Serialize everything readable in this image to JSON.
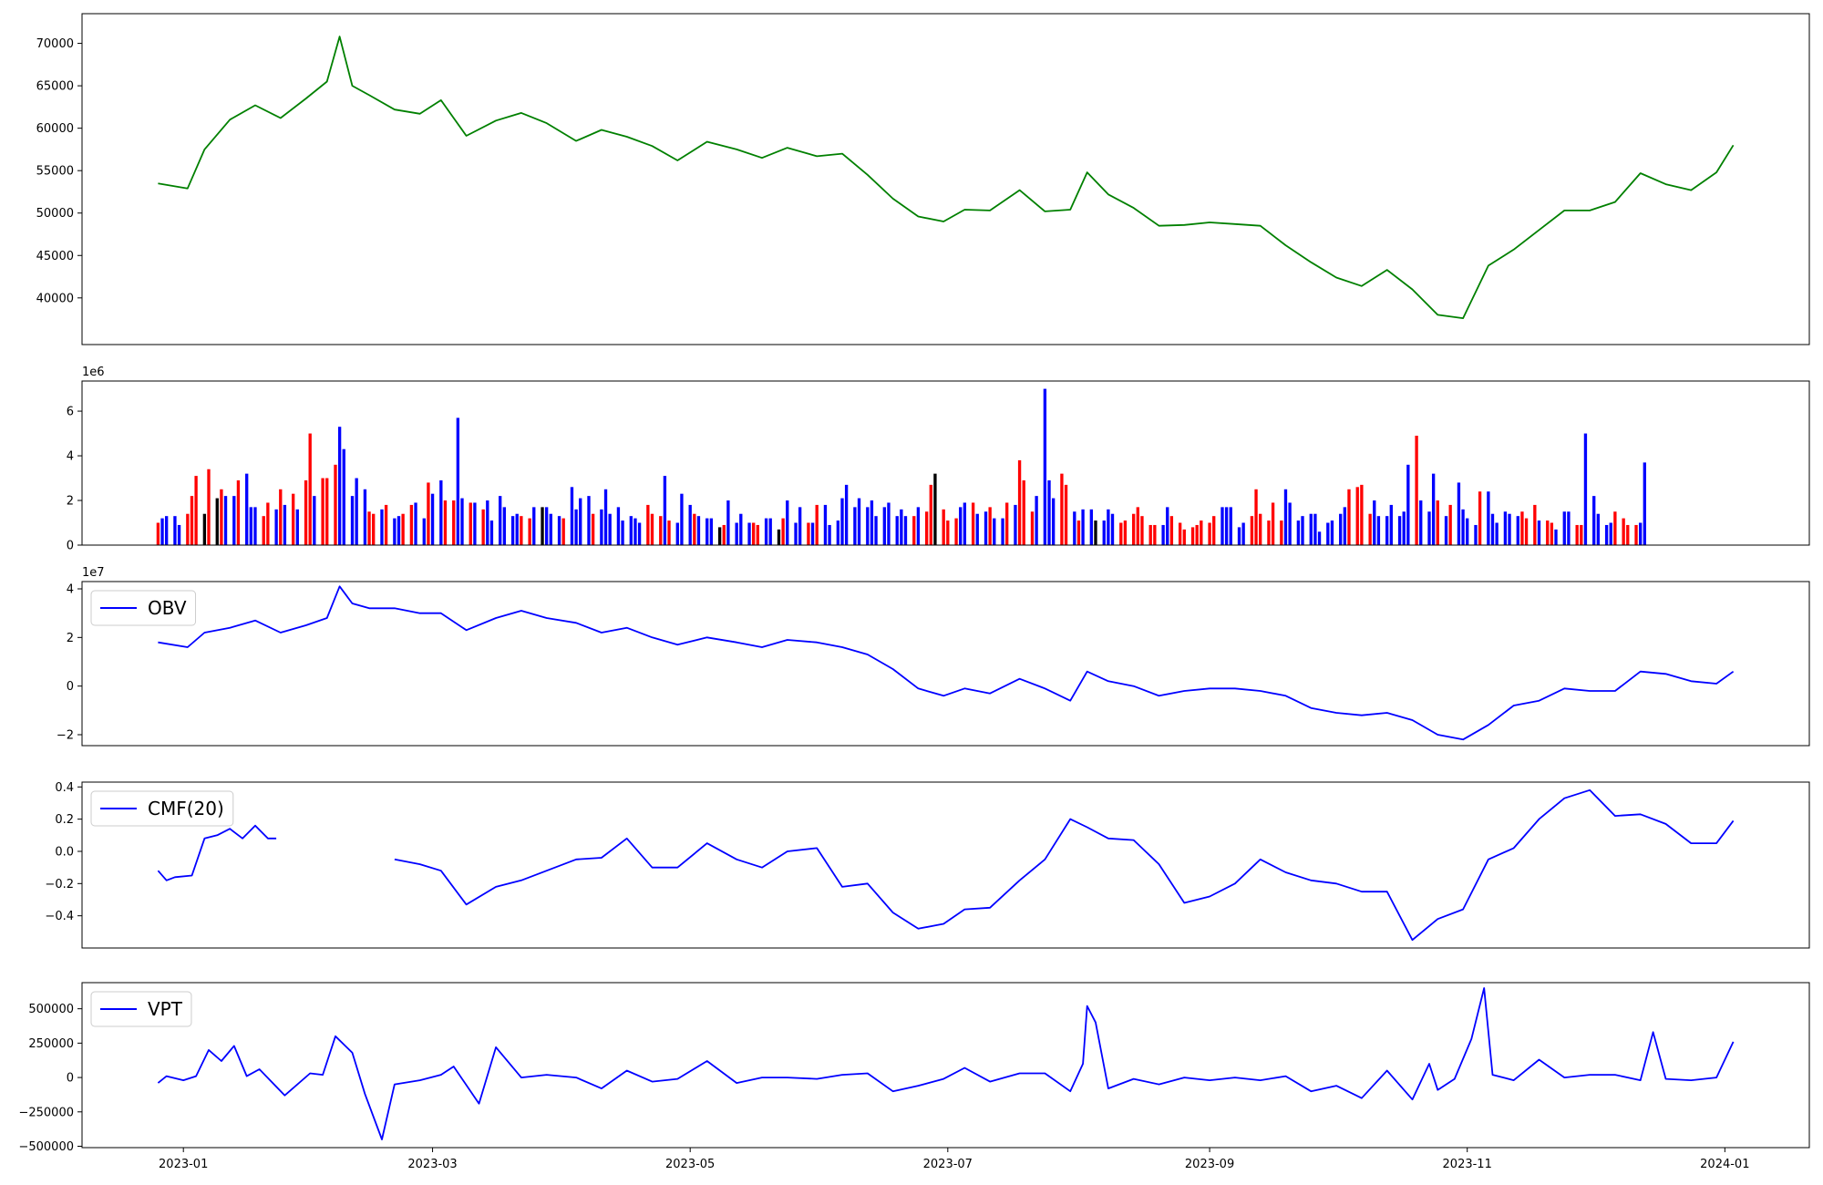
{
  "chart_data": [
    {
      "type": "line",
      "title": "",
      "xlabel": "",
      "ylabel": "",
      "color": "#008000",
      "ylim": [
        34500,
        73500
      ],
      "yticks": [
        40000,
        45000,
        50000,
        55000,
        60000,
        65000,
        70000
      ],
      "ytick_labels": [
        "40000",
        "45000",
        "50000",
        "55000",
        "60000",
        "65000",
        "70000"
      ],
      "x": [
        "2022-12-26",
        "2023-01-02",
        "2023-01-06",
        "2023-01-12",
        "2023-01-18",
        "2023-01-24",
        "2023-01-30",
        "2023-02-04",
        "2023-02-07",
        "2023-02-10",
        "2023-02-14",
        "2023-02-20",
        "2023-02-26",
        "2023-03-03",
        "2023-03-09",
        "2023-03-16",
        "2023-03-22",
        "2023-03-28",
        "2023-04-04",
        "2023-04-10",
        "2023-04-16",
        "2023-04-22",
        "2023-04-28",
        "2023-05-05",
        "2023-05-12",
        "2023-05-18",
        "2023-05-24",
        "2023-05-31",
        "2023-06-06",
        "2023-06-12",
        "2023-06-18",
        "2023-06-24",
        "2023-06-30",
        "2023-07-05",
        "2023-07-11",
        "2023-07-18",
        "2023-07-24",
        "2023-07-30",
        "2023-08-03",
        "2023-08-08",
        "2023-08-14",
        "2023-08-20",
        "2023-08-26",
        "2023-09-01",
        "2023-09-07",
        "2023-09-13",
        "2023-09-19",
        "2023-09-25",
        "2023-10-01",
        "2023-10-07",
        "2023-10-13",
        "2023-10-19",
        "2023-10-25",
        "2023-10-31",
        "2023-11-06",
        "2023-11-12",
        "2023-11-18",
        "2023-11-24",
        "2023-11-30",
        "2023-12-06",
        "2023-12-12",
        "2023-12-18",
        "2023-12-24",
        "2023-12-30",
        "2024-01-03"
      ],
      "values": [
        53500,
        52900,
        57500,
        61000,
        62700,
        61200,
        63500,
        65500,
        70800,
        65000,
        63900,
        62200,
        61700,
        63300,
        59100,
        60900,
        61800,
        60600,
        58500,
        59800,
        59000,
        57900,
        56200,
        58400,
        57500,
        56500,
        57700,
        56700,
        57000,
        54500,
        51700,
        49600,
        49000,
        50400,
        50300,
        52700,
        50200,
        50400,
        54800,
        52200,
        50600,
        48500,
        48600,
        48900,
        48700,
        48500,
        46200,
        44200,
        42400,
        41400,
        43300,
        41000,
        38000,
        37600,
        43800,
        45700,
        48000,
        50300,
        50300,
        51300,
        54700,
        53400,
        52700,
        54800,
        58000
      ]
    },
    {
      "type": "bar",
      "title": "",
      "xlabel": "",
      "ylabel": "",
      "offset_label": "1e6",
      "ylim": [
        0,
        7.35
      ],
      "yticks": [
        0,
        2,
        4,
        6
      ],
      "ytick_labels": [
        "0",
        "2",
        "4",
        "6"
      ],
      "colors": {
        "up": "#ff0000",
        "down": "#0000ff",
        "flat": "#000000"
      },
      "x_start": "2022-12-26",
      "values": [
        1.0,
        1.2,
        1.3,
        1.3,
        0.9,
        1.4,
        2.2,
        3.1,
        1.4,
        3.4,
        2.1,
        2.5,
        2.2,
        2.2,
        2.9,
        3.2,
        1.7,
        1.7,
        1.3,
        1.9,
        1.6,
        2.5,
        1.8,
        2.3,
        1.6,
        2.9,
        5.0,
        2.2,
        3.0,
        3.0,
        3.6,
        5.3,
        4.3,
        2.2,
        3.0,
        2.5,
        1.5,
        1.4,
        1.6,
        1.8,
        1.2,
        1.3,
        1.4,
        1.8,
        1.9,
        1.2,
        2.8,
        2.3,
        2.9,
        2.0,
        2.0,
        5.7,
        2.1,
        1.9,
        1.9,
        1.6,
        2.0,
        1.1,
        2.2,
        1.7,
        1.3,
        1.4,
        1.3,
        1.2,
        1.7,
        1.7,
        1.7,
        1.4,
        1.3,
        1.2,
        2.6,
        1.6,
        2.1,
        2.2,
        1.4,
        1.6,
        2.5,
        1.4,
        1.7,
        1.1,
        1.3,
        1.2,
        1.0,
        1.8,
        1.4,
        1.3,
        3.1,
        1.1,
        1.0,
        2.3,
        1.8,
        1.4,
        1.3,
        1.2,
        1.2,
        0.8,
        0.9,
        2.0,
        1.0,
        1.4,
        1.0,
        1.0,
        0.9,
        1.2,
        1.2,
        0.7,
        1.2,
        2.0,
        1.0,
        1.7,
        1.0,
        1.0,
        1.8,
        1.8,
        0.9,
        1.1,
        2.1,
        2.7,
        1.7,
        2.1,
        1.7,
        2.0,
        1.3,
        1.7,
        1.9,
        1.3,
        1.6,
        1.3,
        1.3,
        1.7,
        1.5,
        2.7,
        3.2,
        1.6,
        1.1,
        1.2,
        1.7,
        1.9,
        1.9,
        1.4,
        1.5,
        1.7,
        1.2,
        1.2,
        1.9,
        1.8,
        3.8,
        2.9,
        1.5,
        2.2,
        7.0,
        2.9,
        2.1,
        3.2,
        2.7,
        1.5,
        1.1,
        1.6,
        1.6,
        1.1,
        1.1,
        1.6,
        1.4,
        1.0,
        1.1,
        1.4,
        1.7,
        1.3,
        0.9,
        0.9,
        0.9,
        1.7,
        1.3,
        1.0,
        0.7,
        0.8,
        0.9,
        1.1,
        1.0,
        1.3,
        1.7,
        1.7,
        1.7,
        0.8,
        1.0,
        1.3,
        2.5,
        1.4,
        1.1,
        1.9,
        1.1,
        2.5,
        1.9,
        1.1,
        1.3,
        1.4,
        1.4,
        0.6,
        1.0,
        1.1,
        1.4,
        1.7,
        2.5,
        2.6,
        2.7,
        1.4,
        2.0,
        1.3,
        1.3,
        1.8,
        1.3,
        1.5,
        3.6,
        4.9,
        2.0,
        1.5,
        3.2,
        2.0,
        1.3,
        1.8,
        2.8,
        1.6,
        1.2,
        0.9,
        2.4,
        2.4,
        1.4,
        1.0,
        1.5,
        1.4,
        1.3,
        1.5,
        1.2,
        1.8,
        1.1,
        1.1,
        1.0,
        0.7,
        1.5,
        1.5,
        0.9,
        0.9,
        5.0,
        2.2,
        1.4,
        0.9,
        1.0,
        1.5,
        1.2,
        0.9,
        0.9,
        1.0,
        3.7
      ],
      "colors_seq": "rbbbbrrrkrkrbbrbbbrrbrbrbrrbrrrbbbbbrrbrbbrrbbrbbrrbbrbrbbbbbbrrbkbbbrbbbbrbbbbbbbbrrrbrbbbrbbbkrbbbbrrbbkrbbbrbrbbbbbbbbbbbbbbbrbrrkrrrbbrbbrbbrbrrrbbbbrrbrbbkbbbrrrrrrrbbrrrrrrrrbbbbbrrrrrrbbbbbbbbbbbrrrrbbbbbbbrbbbrbrbbbbrbbbbbbrrrbrrbbbrrbbbbbrrrrbbbbbbrrrbbbrrrrr"
    },
    {
      "type": "line",
      "title": "",
      "xlabel": "",
      "ylabel": "",
      "offset_label": "1e7",
      "legend": "OBV",
      "legend_position": "upper-left",
      "color": "#0000ff",
      "ylim": [
        -2.45,
        4.3
      ],
      "yticks": [
        -2,
        0,
        2,
        4
      ],
      "ytick_labels": [
        "−2",
        "0",
        "2",
        "4"
      ],
      "x": [
        "2022-12-26",
        "2023-01-02",
        "2023-01-06",
        "2023-01-12",
        "2023-01-18",
        "2023-01-24",
        "2023-01-30",
        "2023-02-04",
        "2023-02-07",
        "2023-02-10",
        "2023-02-14",
        "2023-02-20",
        "2023-02-26",
        "2023-03-03",
        "2023-03-09",
        "2023-03-16",
        "2023-03-22",
        "2023-03-28",
        "2023-04-04",
        "2023-04-10",
        "2023-04-16",
        "2023-04-22",
        "2023-04-28",
        "2023-05-05",
        "2023-05-12",
        "2023-05-18",
        "2023-05-24",
        "2023-05-31",
        "2023-06-06",
        "2023-06-12",
        "2023-06-18",
        "2023-06-24",
        "2023-06-30",
        "2023-07-05",
        "2023-07-11",
        "2023-07-18",
        "2023-07-24",
        "2023-07-30",
        "2023-08-03",
        "2023-08-08",
        "2023-08-14",
        "2023-08-20",
        "2023-08-26",
        "2023-09-01",
        "2023-09-07",
        "2023-09-13",
        "2023-09-19",
        "2023-09-25",
        "2023-10-01",
        "2023-10-07",
        "2023-10-13",
        "2023-10-19",
        "2023-10-25",
        "2023-10-31",
        "2023-11-06",
        "2023-11-12",
        "2023-11-18",
        "2023-11-24",
        "2023-11-30",
        "2023-12-06",
        "2023-12-12",
        "2023-12-18",
        "2023-12-24",
        "2023-12-30",
        "2024-01-03"
      ],
      "values": [
        1.8,
        1.6,
        2.2,
        2.4,
        2.7,
        2.2,
        2.5,
        2.8,
        4.1,
        3.4,
        3.2,
        3.2,
        3.0,
        3.0,
        2.3,
        2.8,
        3.1,
        2.8,
        2.6,
        2.2,
        2.4,
        2.0,
        1.7,
        2.0,
        1.8,
        1.6,
        1.9,
        1.8,
        1.6,
        1.3,
        0.7,
        -0.1,
        -0.4,
        -0.1,
        -0.3,
        0.3,
        -0.1,
        -0.6,
        0.6,
        0.2,
        0.0,
        -0.4,
        -0.2,
        -0.1,
        -0.1,
        -0.2,
        -0.4,
        -0.9,
        -1.1,
        -1.2,
        -1.1,
        -1.4,
        -2.0,
        -2.2,
        -1.6,
        -0.8,
        -0.6,
        -0.1,
        -0.2,
        -0.2,
        0.6,
        0.5,
        0.2,
        0.1,
        0.6
      ]
    },
    {
      "type": "line",
      "title": "",
      "xlabel": "",
      "ylabel": "",
      "legend": "CMF(20)",
      "legend_position": "upper-left",
      "color": "#0000ff",
      "ylim": [
        -0.6,
        0.43
      ],
      "yticks": [
        -0.4,
        -0.2,
        0.0,
        0.2,
        0.4
      ],
      "ytick_labels": [
        "−0.4",
        "−0.2",
        "0.0",
        "0.2",
        "0.4"
      ],
      "segments": [
        {
          "x": [
            "2022-12-26",
            "2022-12-28",
            "2022-12-30",
            "2023-01-03",
            "2023-01-06",
            "2023-01-09",
            "2023-01-12",
            "2023-01-15",
            "2023-01-18",
            "2023-01-21",
            "2023-01-23"
          ],
          "values": [
            -0.12,
            -0.18,
            -0.16,
            -0.15,
            0.08,
            0.1,
            0.14,
            0.08,
            0.16,
            0.08,
            0.08
          ]
        },
        {
          "x": [
            "2023-02-20",
            "2023-02-26",
            "2023-03-03",
            "2023-03-09",
            "2023-03-16",
            "2023-03-22",
            "2023-03-28",
            "2023-04-04",
            "2023-04-10",
            "2023-04-16",
            "2023-04-22",
            "2023-04-28",
            "2023-05-05",
            "2023-05-12",
            "2023-05-18",
            "2023-05-24",
            "2023-05-31",
            "2023-06-06",
            "2023-06-12",
            "2023-06-18",
            "2023-06-24",
            "2023-06-30",
            "2023-07-05",
            "2023-07-11",
            "2023-07-18",
            "2023-07-24",
            "2023-07-30",
            "2023-08-03",
            "2023-08-08",
            "2023-08-14",
            "2023-08-20",
            "2023-08-26",
            "2023-09-01",
            "2023-09-07",
            "2023-09-13",
            "2023-09-19",
            "2023-09-25",
            "2023-10-01",
            "2023-10-07",
            "2023-10-13",
            "2023-10-19",
            "2023-10-25",
            "2023-10-31",
            "2023-11-06",
            "2023-11-12",
            "2023-11-18",
            "2023-11-24",
            "2023-11-30",
            "2023-12-06",
            "2023-12-12",
            "2023-12-18",
            "2023-12-24",
            "2023-12-30",
            "2024-01-03"
          ],
          "values": [
            -0.05,
            -0.08,
            -0.12,
            -0.33,
            -0.22,
            -0.18,
            -0.12,
            -0.05,
            -0.04,
            0.08,
            -0.1,
            -0.1,
            0.05,
            -0.05,
            -0.1,
            0.0,
            0.02,
            -0.22,
            -0.2,
            -0.38,
            -0.48,
            -0.45,
            -0.36,
            -0.35,
            -0.18,
            -0.05,
            0.2,
            0.15,
            0.08,
            0.07,
            -0.08,
            -0.32,
            -0.28,
            -0.2,
            -0.05,
            -0.13,
            -0.18,
            -0.2,
            -0.25,
            -0.25,
            -0.55,
            -0.42,
            -0.36,
            -0.05,
            0.02,
            0.2,
            0.33,
            0.38,
            0.22,
            0.23,
            0.17,
            0.05,
            0.05,
            0.19
          ]
        }
      ]
    },
    {
      "type": "line",
      "title": "",
      "xlabel": "",
      "ylabel": "",
      "legend": "VPT",
      "legend_position": "upper-left",
      "color": "#0000ff",
      "ylim": [
        -510000,
        690000
      ],
      "yticks": [
        -500000,
        -250000,
        0,
        250000,
        500000
      ],
      "ytick_labels": [
        "−500000",
        "−250000",
        "0",
        "250000",
        "500000"
      ],
      "x": [
        "2022-12-26",
        "2022-12-28",
        "2023-01-01",
        "2023-01-04",
        "2023-01-07",
        "2023-01-10",
        "2023-01-13",
        "2023-01-16",
        "2023-01-19",
        "2023-01-25",
        "2023-01-31",
        "2023-02-03",
        "2023-02-06",
        "2023-02-10",
        "2023-02-13",
        "2023-02-17",
        "2023-02-20",
        "2023-02-26",
        "2023-03-03",
        "2023-03-06",
        "2023-03-12",
        "2023-03-16",
        "2023-03-22",
        "2023-03-28",
        "2023-04-04",
        "2023-04-10",
        "2023-04-16",
        "2023-04-22",
        "2023-04-28",
        "2023-05-05",
        "2023-05-12",
        "2023-05-18",
        "2023-05-24",
        "2023-05-31",
        "2023-06-06",
        "2023-06-12",
        "2023-06-18",
        "2023-06-24",
        "2023-06-30",
        "2023-07-05",
        "2023-07-11",
        "2023-07-18",
        "2023-07-24",
        "2023-07-30",
        "2023-08-02",
        "2023-08-03",
        "2023-08-05",
        "2023-08-08",
        "2023-08-14",
        "2023-08-20",
        "2023-08-26",
        "2023-09-01",
        "2023-09-07",
        "2023-09-13",
        "2023-09-19",
        "2023-09-25",
        "2023-10-01",
        "2023-10-07",
        "2023-10-13",
        "2023-10-19",
        "2023-10-23",
        "2023-10-25",
        "2023-10-29",
        "2023-11-02",
        "2023-11-05",
        "2023-11-07",
        "2023-11-12",
        "2023-11-18",
        "2023-11-24",
        "2023-11-30",
        "2023-12-06",
        "2023-12-12",
        "2023-12-15",
        "2023-12-18",
        "2023-12-24",
        "2023-12-30",
        "2024-01-03"
      ],
      "values": [
        -40000,
        10000,
        -20000,
        10000,
        200000,
        120000,
        230000,
        10000,
        60000,
        -130000,
        30000,
        20000,
        300000,
        180000,
        -120000,
        -450000,
        -50000,
        -20000,
        20000,
        80000,
        -190000,
        220000,
        0,
        20000,
        0,
        -80000,
        50000,
        -30000,
        -10000,
        120000,
        -40000,
        0,
        0,
        -10000,
        20000,
        30000,
        -100000,
        -60000,
        -10000,
        70000,
        -30000,
        30000,
        30000,
        -100000,
        100000,
        520000,
        400000,
        -80000,
        -10000,
        -50000,
        0,
        -20000,
        0,
        -20000,
        10000,
        -100000,
        -60000,
        -150000,
        50000,
        -160000,
        100000,
        -90000,
        -10000,
        280000,
        650000,
        20000,
        -20000,
        130000,
        0,
        20000,
        20000,
        -20000,
        330000,
        -10000,
        -20000,
        0,
        260000
      ]
    }
  ],
  "x_axis": {
    "ticks": [
      "2023-01-01",
      "2023-03-01",
      "2023-05-01",
      "2023-07-01",
      "2023-09-01",
      "2023-11-01",
      "2024-01-01"
    ],
    "tick_labels": [
      "2023-01",
      "2023-03",
      "2023-05",
      "2023-07",
      "2023-09",
      "2023-11",
      "2024-01"
    ],
    "xlim": [
      "2022-12-08",
      "2024-01-21"
    ]
  }
}
